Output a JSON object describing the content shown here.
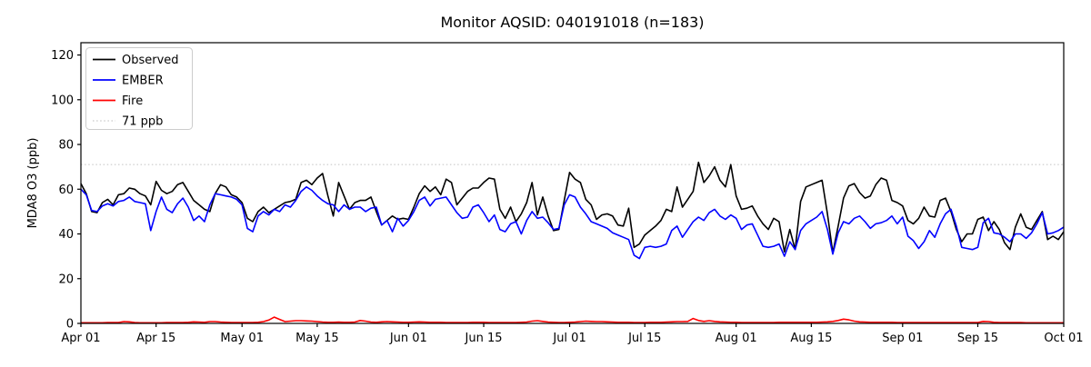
{
  "header": {
    "title": "Monitor AQSID: 040191018 (n=183)"
  },
  "axes": {
    "ylabel": "MDA8 O3 (ppb)",
    "y_ticks": [
      0,
      20,
      40,
      60,
      80,
      100,
      120
    ],
    "x_ticks": [
      {
        "label": "Apr 01",
        "day": 0
      },
      {
        "label": "Apr 15",
        "day": 14
      },
      {
        "label": "May 01",
        "day": 30
      },
      {
        "label": "May 15",
        "day": 44
      },
      {
        "label": "Jun 01",
        "day": 61
      },
      {
        "label": "Jun 15",
        "day": 75
      },
      {
        "label": "Jul 01",
        "day": 91
      },
      {
        "label": "Jul 15",
        "day": 105
      },
      {
        "label": "Aug 01",
        "day": 122
      },
      {
        "label": "Aug 15",
        "day": 136
      },
      {
        "label": "Sep 01",
        "day": 153
      },
      {
        "label": "Sep 15",
        "day": 167
      },
      {
        "label": "Oct 01",
        "day": 183
      }
    ]
  },
  "legend": {
    "observed_label": "Observed",
    "ember_label": "EMBER",
    "fire_label": "Fire",
    "threshold_label": "71 ppb"
  },
  "colors": {
    "observed": "#000000",
    "ember": "#0000ff",
    "fire": "#ff0000",
    "threshold": "#d3d3d3",
    "spine": "#000000",
    "legend_border": "#cccccc"
  },
  "chart_data": {
    "type": "line",
    "title": "Monitor AQSID: 040191018 (n=183)",
    "xlabel": "",
    "ylabel": "MDA8 O3 (ppb)",
    "n": 183,
    "ylim": [
      0,
      125.5
    ],
    "x_days_start": "Apr 01",
    "x_days_end": "Oct 01",
    "x_total_days": 183,
    "threshold_value": 71,
    "grid": false,
    "legend_position": "upper-left",
    "series": [
      {
        "name": "Observed",
        "color": "#000000",
        "values": [
          62.5,
          58,
          50,
          49.5,
          54,
          55.5,
          53,
          57.5,
          58,
          60.5,
          60,
          58,
          57,
          53,
          63.5,
          59.5,
          58,
          59,
          62,
          63,
          59,
          55,
          53,
          51,
          50,
          58,
          62,
          61,
          57.5,
          56.5,
          54,
          47,
          45.5,
          50,
          52,
          49.5,
          51,
          52.5,
          54,
          54.5,
          55.5,
          63,
          64,
          62,
          65,
          67,
          57,
          48,
          63,
          57,
          51,
          54,
          55,
          55,
          56.5,
          50,
          44,
          46,
          48,
          46.5,
          47,
          46.5,
          52,
          58,
          61.5,
          59,
          61,
          57.5,
          64.5,
          63,
          53,
          56,
          59,
          60.5,
          60.5,
          63,
          65,
          64.5,
          51,
          47,
          52,
          45.5,
          49,
          54,
          63,
          48.5,
          56.5,
          48,
          41.5,
          42,
          55,
          67.5,
          64.5,
          63,
          55.5,
          53,
          46.5,
          48.5,
          49,
          48,
          44,
          43.5,
          51.5,
          34,
          35.5,
          39.5,
          41.5,
          43.5,
          46,
          51,
          50,
          61,
          52,
          55.5,
          59,
          72,
          63,
          66,
          70,
          64,
          61,
          71,
          57,
          51,
          51.5,
          52.5,
          48,
          44.5,
          42,
          47,
          45.5,
          32,
          42,
          33,
          54.5,
          61,
          62,
          63,
          64,
          49,
          31.5,
          43.5,
          56,
          61.5,
          62.5,
          58.5,
          56,
          57,
          62,
          65,
          64,
          55,
          54,
          52.5,
          46,
          44.5,
          47,
          52,
          48,
          47.5,
          55,
          56,
          50,
          42,
          36.5,
          40,
          40,
          46.5,
          47.5,
          41.5,
          45.5,
          42,
          36,
          33,
          43,
          49,
          43,
          42,
          46,
          50,
          37.5,
          39,
          37.5,
          41
        ]
      },
      {
        "name": "EMBER",
        "color": "#0000ff",
        "values": [
          60,
          57.5,
          50.5,
          50,
          52.5,
          53.5,
          52.5,
          54.5,
          55,
          56.5,
          54.5,
          54,
          53.5,
          41.5,
          50,
          56.5,
          51,
          49.5,
          53.5,
          56,
          52,
          46,
          48,
          45.5,
          53,
          58,
          57.5,
          57,
          56.5,
          55.5,
          53,
          42.5,
          41,
          48,
          50,
          48.5,
          51,
          50,
          53,
          52,
          55,
          59,
          61,
          59.5,
          57,
          55,
          53.5,
          53,
          50,
          53,
          51,
          52,
          52,
          50,
          51.5,
          52,
          44,
          46,
          41,
          47,
          43.5,
          46,
          50,
          55,
          56.5,
          52.5,
          55.5,
          56,
          56.5,
          53,
          49.5,
          47,
          47.5,
          52,
          53,
          49.5,
          45.5,
          48.5,
          42,
          41,
          44.5,
          45.5,
          40,
          46,
          50,
          47,
          47.5,
          45,
          42,
          42.5,
          53,
          57.5,
          56.5,
          52,
          49,
          45.5,
          44.5,
          43.5,
          42.5,
          40.5,
          39.5,
          38.5,
          37.5,
          30.5,
          29,
          34,
          34.5,
          34,
          34.5,
          35.5,
          41.5,
          43.5,
          38.5,
          42,
          45.5,
          47.5,
          46,
          49.5,
          51,
          48,
          46.5,
          48.5,
          47,
          42,
          44,
          44.5,
          39.5,
          34.5,
          34,
          34.5,
          35.5,
          30,
          36.5,
          33,
          41.5,
          44.5,
          46,
          47.5,
          50,
          42,
          31,
          40.5,
          45.5,
          44.5,
          47,
          48,
          45.5,
          42.5,
          44.5,
          45,
          46,
          48,
          44.5,
          47.5,
          39,
          37,
          33.5,
          36.5,
          41.5,
          38.5,
          44.5,
          49,
          51,
          43.5,
          34,
          33.5,
          33,
          34,
          45,
          47,
          40.5,
          40,
          38.5,
          36.5,
          40,
          40,
          38,
          40.5,
          44.5,
          49.5,
          40,
          40.5,
          41.5,
          43
        ]
      },
      {
        "name": "Fire",
        "color": "#ff0000",
        "values": [
          0.3,
          0.3,
          0.3,
          0.3,
          0.3,
          0.4,
          0.4,
          0.4,
          0.8,
          0.7,
          0.4,
          0.3,
          0.3,
          0.3,
          0.3,
          0.3,
          0.4,
          0.4,
          0.4,
          0.4,
          0.5,
          0.7,
          0.6,
          0.5,
          0.8,
          0.8,
          0.6,
          0.5,
          0.4,
          0.4,
          0.4,
          0.4,
          0.4,
          0.5,
          0.8,
          1.5,
          2.8,
          1.8,
          0.8,
          1.0,
          1.2,
          1.2,
          1.1,
          1.0,
          0.8,
          0.6,
          0.5,
          0.5,
          0.6,
          0.5,
          0.5,
          0.6,
          1.3,
          1.0,
          0.6,
          0.5,
          0.7,
          0.8,
          0.7,
          0.6,
          0.5,
          0.5,
          0.6,
          0.7,
          0.6,
          0.5,
          0.5,
          0.5,
          0.4,
          0.4,
          0.4,
          0.4,
          0.4,
          0.5,
          0.5,
          0.5,
          0.4,
          0.4,
          0.4,
          0.4,
          0.4,
          0.4,
          0.5,
          0.6,
          1.0,
          1.2,
          0.9,
          0.6,
          0.5,
          0.4,
          0.4,
          0.5,
          0.6,
          0.8,
          1.0,
          0.9,
          0.8,
          0.8,
          0.7,
          0.6,
          0.5,
          0.5,
          0.5,
          0.4,
          0.4,
          0.4,
          0.5,
          0.5,
          0.5,
          0.6,
          0.7,
          0.8,
          0.8,
          0.9,
          2.2,
          1.3,
          0.9,
          1.2,
          0.9,
          0.7,
          0.6,
          0.5,
          0.5,
          0.4,
          0.4,
          0.4,
          0.4,
          0.4,
          0.4,
          0.4,
          0.5,
          0.5,
          0.5,
          0.5,
          0.5,
          0.5,
          0.5,
          0.5,
          0.6,
          0.7,
          0.9,
          1.3,
          1.9,
          1.6,
          1.0,
          0.7,
          0.6,
          0.5,
          0.5,
          0.5,
          0.5,
          0.5,
          0.4,
          0.4,
          0.4,
          0.4,
          0.4,
          0.4,
          0.4,
          0.4,
          0.4,
          0.4,
          0.4,
          0.4,
          0.4,
          0.4,
          0.4,
          0.4,
          0.9,
          0.8,
          0.5,
          0.4,
          0.4,
          0.4,
          0.4,
          0.4,
          0.3,
          0.3,
          0.3,
          0.3,
          0.3,
          0.3,
          0.3,
          0.3
        ]
      }
    ]
  }
}
